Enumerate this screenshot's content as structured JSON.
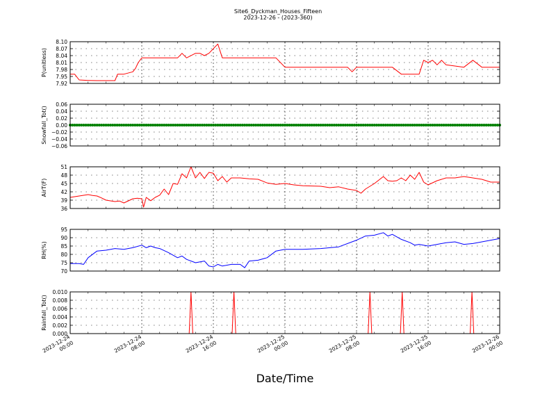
{
  "figure": {
    "title_line1": "Site6_Dyckman_Houses_Fifteen",
    "title_line2": "2023-12-26 - (2023-360)",
    "xlabel": "Date/Time",
    "x_tick_labels": [
      [
        "2023-12-24",
        "00:00"
      ],
      [
        "2023-12-24",
        "08:00"
      ],
      [
        "2023-12-24",
        "16:00"
      ],
      [
        "2023-12-25",
        "00:00"
      ],
      [
        "2023-12-25",
        "08:00"
      ],
      [
        "2023-12-25",
        "16:00"
      ],
      [
        "2023-12-26",
        "00:00"
      ]
    ]
  },
  "chart_data": [
    {
      "type": "line",
      "ylabel": "P(unitless)",
      "ylim": [
        7.92,
        8.1
      ],
      "yticks": [
        "7.92",
        "7.95",
        "7.98",
        "8.01",
        "8.04",
        "8.07",
        "8.10"
      ],
      "color": "#ff0000",
      "x_hours": [
        0,
        0.5,
        1,
        2,
        3,
        4,
        5,
        5.3,
        6,
        7,
        7.3,
        7.6,
        8,
        10,
        12,
        12.5,
        13,
        14,
        14.5,
        15,
        15.5,
        16,
        16.5,
        17,
        20,
        22,
        23,
        24,
        28,
        31,
        31.5,
        32,
        36,
        37,
        37.5,
        38,
        38.5,
        39,
        39.5,
        40,
        40.5,
        41,
        41.5,
        42,
        44,
        45,
        46,
        47,
        48
      ],
      "values": [
        7.96,
        7.96,
        7.935,
        7.933,
        7.932,
        7.932,
        7.932,
        7.96,
        7.96,
        7.97,
        7.985,
        8.01,
        8.03,
        8.03,
        8.03,
        8.05,
        8.03,
        8.05,
        8.05,
        8.04,
        8.05,
        8.07,
        8.09,
        8.03,
        8.03,
        8.03,
        8.03,
        7.99,
        7.99,
        7.99,
        7.97,
        7.99,
        7.99,
        7.96,
        7.96,
        7.96,
        7.96,
        7.96,
        8.02,
        8.01,
        8.02,
        8.0,
        8.02,
        8.0,
        7.99,
        8.02,
        7.99,
        7.99,
        7.99
      ]
    },
    {
      "type": "scatter",
      "ylabel": "Snowfall_Tot()",
      "ylim": [
        -0.06,
        0.06
      ],
      "yticks": [
        "−0.06",
        "−0.04",
        "−0.02",
        "0.00",
        "0.02",
        "0.04",
        "0.06"
      ],
      "color": "#008000",
      "x_hours": [
        0,
        48
      ],
      "values": [
        0,
        0
      ],
      "note_points_every_hours": 0.25
    },
    {
      "type": "line",
      "ylabel": "AirT(F)",
      "ylim": [
        36,
        51
      ],
      "yticks": [
        "36",
        "39",
        "42",
        "45",
        "48",
        "51"
      ],
      "color": "#ff0000",
      "x_hours": [
        0,
        1,
        2,
        2.5,
        3,
        3.5,
        4,
        5,
        5.5,
        6,
        7,
        7.5,
        8,
        8.2,
        8.5,
        9,
        9.5,
        10,
        10.5,
        11,
        11.5,
        12,
        12.5,
        13,
        13.5,
        14,
        14.5,
        15,
        15.5,
        16,
        16.5,
        17,
        17.5,
        18,
        19,
        20,
        21,
        22,
        23,
        24,
        25,
        26,
        28,
        29,
        30,
        31,
        32,
        32.5,
        33,
        34,
        35,
        35.5,
        36,
        36.5,
        37,
        37.5,
        38,
        38.5,
        39,
        39.5,
        40,
        41,
        42,
        43,
        44,
        45,
        46,
        47,
        48
      ],
      "values": [
        40,
        40.5,
        41,
        40.7,
        40.5,
        39.8,
        39,
        38.5,
        38.7,
        38,
        39.5,
        39.7,
        39.5,
        36.5,
        40,
        38.8,
        40,
        40.8,
        43,
        41,
        45,
        44.7,
        48.5,
        47,
        51,
        47,
        49,
        46.8,
        49,
        48.7,
        46,
        47.5,
        45.5,
        47,
        47,
        46.7,
        46.5,
        45.2,
        44.7,
        45,
        44.5,
        44.2,
        44,
        43.5,
        43.8,
        43,
        42.5,
        41.5,
        43,
        45,
        47.5,
        46,
        45.8,
        46,
        47,
        46,
        48,
        46.5,
        49,
        45.5,
        44.5,
        46,
        47,
        47,
        47.5,
        47,
        46.5,
        45.5,
        45.5
      ]
    },
    {
      "type": "line",
      "ylabel": "RH(%)",
      "ylim": [
        70,
        95
      ],
      "yticks": [
        "70",
        "75",
        "80",
        "85",
        "90",
        "95"
      ],
      "color": "#0000ff",
      "x_hours": [
        0,
        1,
        1.5,
        2,
        3,
        4,
        5,
        6,
        7,
        8,
        8.5,
        9,
        9.5,
        10,
        11,
        12,
        12.5,
        13,
        14,
        15,
        15.5,
        16,
        16.5,
        17,
        18,
        19,
        19.5,
        20,
        21,
        22,
        23,
        24,
        26,
        28,
        30,
        32,
        33,
        34,
        35,
        35.5,
        36,
        37,
        38,
        38.5,
        39,
        40,
        41,
        42,
        43,
        44,
        45,
        46,
        47,
        48
      ],
      "values": [
        74.5,
        74.5,
        74,
        78,
        82,
        82.5,
        83.5,
        83,
        84,
        85.5,
        84,
        85,
        84,
        83.5,
        81,
        78,
        79,
        77,
        75,
        76,
        73,
        72.5,
        74,
        73,
        74,
        74,
        72,
        76,
        76.5,
        78,
        82,
        83,
        83,
        83.5,
        84.5,
        88.5,
        91,
        91.5,
        93,
        91,
        92,
        89,
        87,
        85.5,
        86,
        85,
        86,
        87,
        87.5,
        86,
        86.5,
        87.5,
        88.5,
        89.5
      ]
    },
    {
      "type": "line",
      "ylabel": "Rainfall_Tot()",
      "ylim": [
        0,
        0.01
      ],
      "yticks": [
        "0.000",
        "0.002",
        "0.004",
        "0.006",
        "0.008",
        "0.010"
      ],
      "color": "#ff0000",
      "x_hours": [
        0,
        13.3,
        13.5,
        13.7,
        18.1,
        18.3,
        18.5,
        33.3,
        33.5,
        33.7,
        36.9,
        37.1,
        37.3,
        44.7,
        44.9,
        45.1,
        48
      ],
      "values": [
        0,
        0,
        0.01,
        0,
        0,
        0.01,
        0,
        0,
        0.01,
        0,
        0,
        0.01,
        0,
        0,
        0.01,
        0,
        0
      ]
    }
  ]
}
